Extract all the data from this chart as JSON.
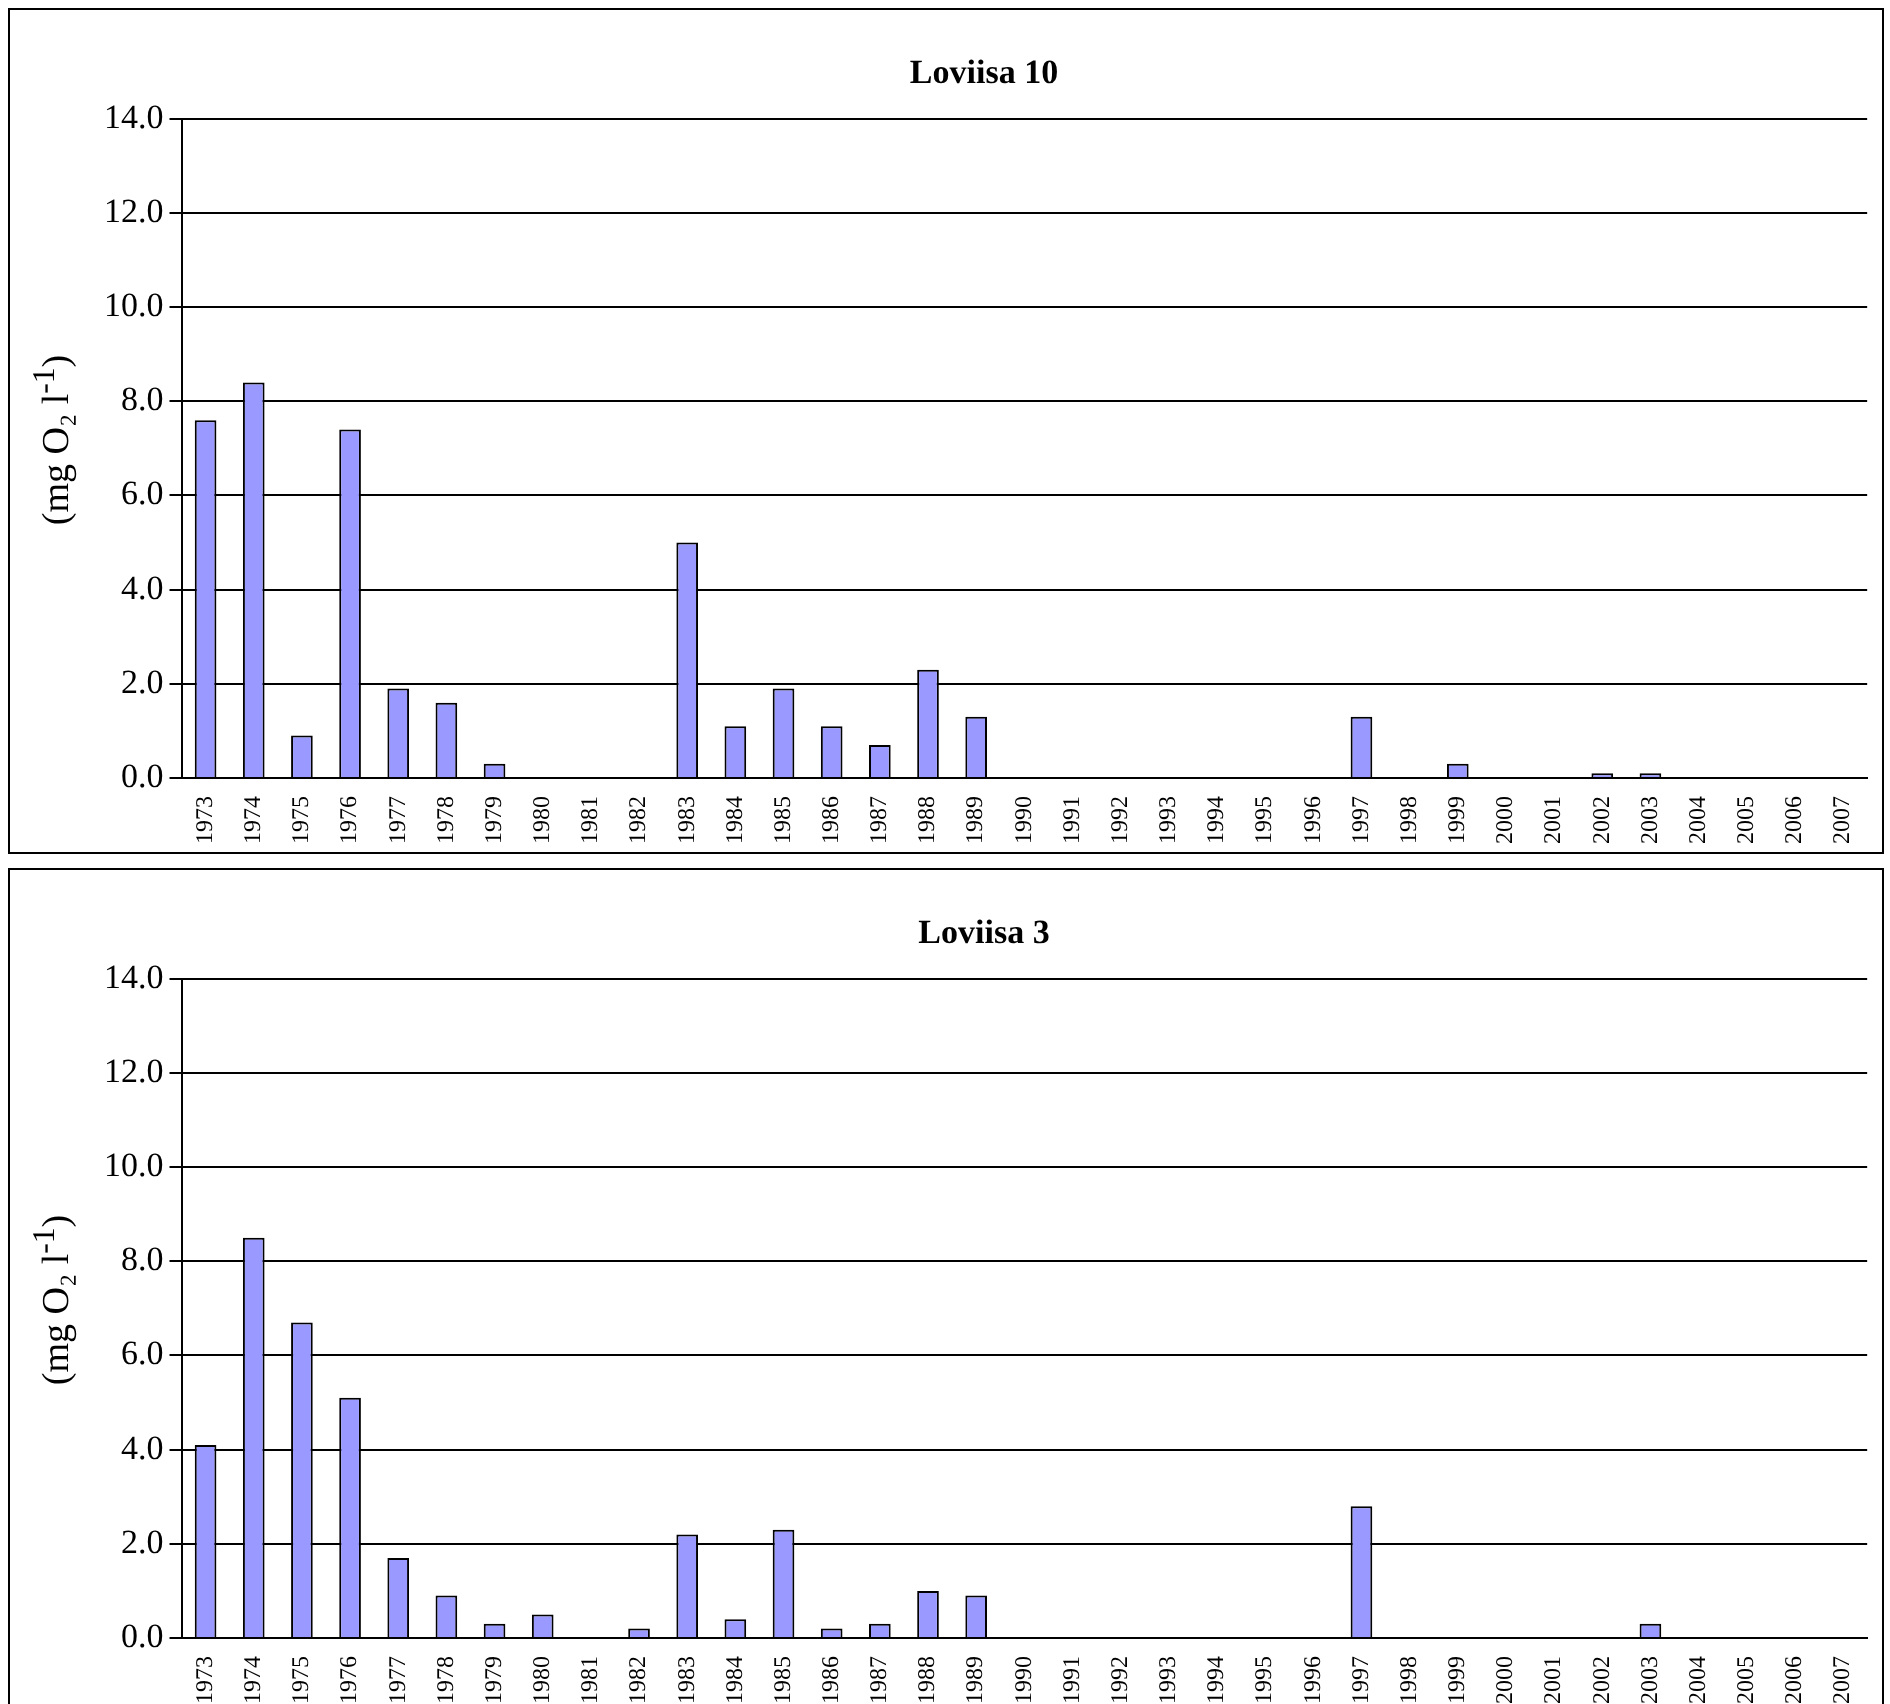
{
  "chart_data": [
    {
      "type": "bar",
      "title": "Loviisa 10",
      "ylabel": "(mg O₂ l$^{-1}$)",
      "categories": [
        "1973",
        "1974",
        "1975",
        "1976",
        "1977",
        "1978",
        "1979",
        "1980",
        "1981",
        "1982",
        "1983",
        "1984",
        "1985",
        "1986",
        "1987",
        "1988",
        "1989",
        "1990",
        "1991",
        "1992",
        "1993",
        "1994",
        "1995",
        "1996",
        "1997",
        "1998",
        "1999",
        "2000",
        "2001",
        "2002",
        "2003",
        "2004",
        "2005",
        "2006",
        "2007"
      ],
      "values": [
        7.6,
        8.4,
        0.9,
        7.4,
        1.9,
        1.6,
        0.3,
        null,
        null,
        null,
        5.0,
        1.1,
        1.9,
        1.1,
        0.7,
        2.3,
        1.3,
        null,
        null,
        null,
        null,
        null,
        null,
        null,
        1.3,
        null,
        0.3,
        null,
        null,
        0.1,
        0.1,
        null,
        null,
        null,
        null
      ],
      "color": "#9999ff",
      "ylim": [
        0,
        14
      ],
      "yticks": [
        {
          "value": 0,
          "label": "0.0"
        },
        {
          "value": 2,
          "label": "2.0"
        },
        {
          "value": 4,
          "label": "4.0"
        },
        {
          "value": 6,
          "label": "6.0"
        },
        {
          "value": 8,
          "label": "8.0"
        },
        {
          "value": 10,
          "label": "10.0"
        },
        {
          "value": 12,
          "label": "12.0"
        },
        {
          "value": 14,
          "label": "14.0"
        }
      ],
      "grid": "y",
      "legend": false
    },
    {
      "type": "bar",
      "title": "Loviisa 3",
      "ylabel": "(mg O₂ l$^{-1}$)",
      "categories": [
        "1973",
        "1974",
        "1975",
        "1976",
        "1977",
        "1978",
        "1979",
        "1980",
        "1981",
        "1982",
        "1983",
        "1984",
        "1985",
        "1986",
        "1987",
        "1988",
        "1989",
        "1990",
        "1991",
        "1992",
        "1993",
        "1994",
        "1995",
        "1996",
        "1997",
        "1998",
        "1999",
        "2000",
        "2001",
        "2002",
        "2003",
        "2004",
        "2005",
        "2006",
        "2007"
      ],
      "values": [
        4.1,
        8.5,
        6.7,
        5.1,
        1.7,
        0.9,
        0.3,
        0.5,
        null,
        0.2,
        2.2,
        0.4,
        2.3,
        0.2,
        0.3,
        1.0,
        0.9,
        null,
        null,
        null,
        null,
        null,
        null,
        null,
        2.8,
        null,
        null,
        null,
        null,
        null,
        0.3,
        null,
        null,
        null,
        null
      ],
      "color": "#9999ff",
      "ylim": [
        0,
        14
      ],
      "yticks": [
        {
          "value": 0,
          "label": "0.0"
        },
        {
          "value": 2,
          "label": "2.0"
        },
        {
          "value": 4,
          "label": "4.0"
        },
        {
          "value": 6,
          "label": "6.0"
        },
        {
          "value": 8,
          "label": "8.0"
        },
        {
          "value": 10,
          "label": "10.0"
        },
        {
          "value": 12,
          "label": "12.0"
        },
        {
          "value": 14,
          "label": "14.0"
        }
      ],
      "grid": "y",
      "legend": false
    }
  ]
}
